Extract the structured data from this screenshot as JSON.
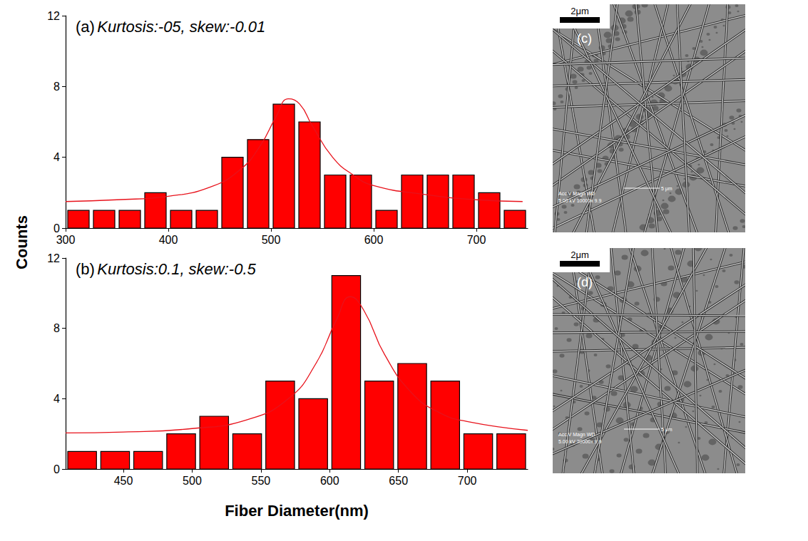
{
  "chart_data": [
    {
      "type": "histogram",
      "label": "(a)",
      "annotation": "Kurtosis:-05, skew:-0.01",
      "bins": [
        300,
        325,
        350,
        375,
        400,
        425,
        450,
        475,
        500,
        525,
        550,
        575,
        600,
        625,
        650,
        675,
        700,
        725,
        750
      ],
      "values": [
        1,
        1,
        1,
        2,
        1,
        1,
        4,
        5,
        7,
        6,
        3,
        3,
        1,
        3,
        3,
        3,
        2,
        1
      ],
      "color": "#ff0000",
      "curve": {
        "type": "line",
        "color": "#e8121b",
        "line_style": "solid",
        "x": [
          300,
          350,
          400,
          440,
          470,
          490,
          505,
          517,
          528,
          540,
          560,
          580,
          600,
          650,
          700,
          745
        ],
        "values": [
          1.5,
          1.6,
          1.8,
          2.3,
          3.3,
          4.7,
          6.3,
          7.3,
          7.0,
          5.8,
          4.0,
          3.0,
          2.4,
          1.9,
          1.6,
          1.5
        ]
      },
      "xlim": [
        300,
        750
      ],
      "xticks": [
        300,
        400,
        500,
        600,
        700
      ],
      "ylim": [
        0,
        12
      ],
      "yticks": [
        0,
        4,
        8,
        12
      ],
      "grid": false
    },
    {
      "type": "histogram",
      "label": "(b)",
      "annotation": "Kurtosis:0.1, skew:-0.5",
      "bins": [
        408,
        432,
        456,
        480,
        504,
        528,
        552,
        576,
        600,
        624,
        648,
        672,
        696,
        720,
        744
      ],
      "values": [
        1,
        1,
        1,
        2,
        3,
        2,
        5,
        4,
        11,
        5,
        6,
        5,
        2,
        2
      ],
      "color": "#ff0000",
      "curve": {
        "type": "line",
        "color": "#e8121b",
        "line_style": "solid",
        "x": [
          408,
          450,
          500,
          540,
          570,
          590,
          605,
          615,
          625,
          640,
          660,
          680,
          700,
          744
        ],
        "values": [
          2.05,
          2.1,
          2.3,
          2.8,
          4.0,
          6.0,
          8.5,
          9.8,
          9.0,
          6.5,
          4.3,
          3.2,
          2.7,
          2.2
        ]
      },
      "xlim": [
        408,
        744
      ],
      "xticks": [
        450,
        500,
        550,
        600,
        650,
        700
      ],
      "ylim": [
        0,
        12
      ],
      "yticks": [
        0,
        4,
        8,
        12
      ],
      "grid": false
    }
  ],
  "figure": {
    "ylabel": "Counts",
    "xlabel": "Fiber Diameter(nm)"
  },
  "images": [
    {
      "label": "(c)",
      "scale_bar": "2μm",
      "info": [
        "Acc.V  Magn   WD",
        "5.00 kV 10000x  9.9"
      ],
      "inner_scale": "5 μm"
    },
    {
      "label": "(d)",
      "scale_bar": "2μm",
      "info": [
        "Acc.V  Magn   WD",
        "5.00 kV 20000x  9.9"
      ],
      "inner_scale": "5 μm"
    }
  ]
}
